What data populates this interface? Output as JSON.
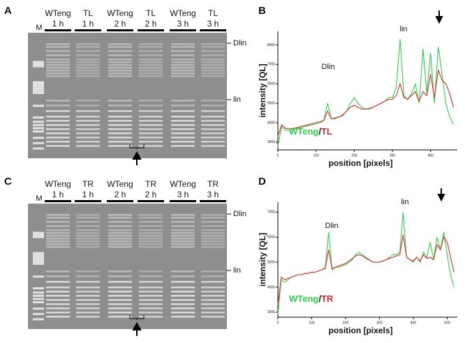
{
  "gels": [
    {
      "panel": "A",
      "marker": "M",
      "lanes": [
        {
          "name": "WTeng",
          "time": "1 h"
        },
        {
          "name": "TL",
          "time": "1 h"
        },
        {
          "name": "WTeng",
          "time": "2 h"
        },
        {
          "name": "TL",
          "time": "2 h"
        },
        {
          "name": "WTeng",
          "time": "3 h"
        },
        {
          "name": "TL",
          "time": "3 h"
        }
      ],
      "bands": [
        "Dlin",
        "lin"
      ]
    },
    {
      "panel": "C",
      "marker": "M",
      "lanes": [
        {
          "name": "WTeng",
          "time": "1 h"
        },
        {
          "name": "TR",
          "time": "1 h"
        },
        {
          "name": "WTeng",
          "time": "2 h"
        },
        {
          "name": "TR",
          "time": "2 h"
        },
        {
          "name": "WTeng",
          "time": "3 h"
        },
        {
          "name": "TR",
          "time": "3 h"
        }
      ],
      "bands": [
        "Dlin",
        "lin"
      ]
    }
  ],
  "chart_data": [
    {
      "type": "line",
      "panel": "B",
      "y_label": "intensity [QL]",
      "x_label": "position [pixels]",
      "legend_separator": "/",
      "annotations": [
        "Dlin",
        "lin"
      ],
      "x": [
        0,
        10,
        20,
        30,
        40,
        50,
        60,
        70,
        80,
        90,
        100,
        110,
        120,
        130,
        140,
        150,
        160,
        170,
        180,
        190,
        200,
        210,
        220,
        230,
        240,
        250,
        260,
        270,
        280,
        290,
        300,
        310,
        320,
        330,
        340,
        350,
        360,
        370,
        380,
        390,
        400,
        410,
        420,
        430,
        440,
        450,
        460
      ],
      "series": [
        {
          "name": "WTeng",
          "color": "#2fd04a",
          "values": [
            2800,
            3800,
            3600,
            3600,
            3650,
            3700,
            3750,
            3800,
            3850,
            3900,
            3950,
            4000,
            4100,
            5000,
            4200,
            4200,
            4300,
            4350,
            4600,
            5000,
            5300,
            5000,
            4800,
            4700,
            4700,
            4800,
            4900,
            5000,
            5100,
            5300,
            5300,
            5800,
            8300,
            5400,
            5200,
            5500,
            6000,
            5000,
            7800,
            5500,
            7600,
            5000,
            7900,
            6500,
            5000,
            4300,
            3900
          ]
        },
        {
          "name": "TL",
          "color": "#e8262b",
          "values": [
            3300,
            3900,
            3700,
            3700,
            3700,
            3750,
            3800,
            3850,
            3900,
            3950,
            4000,
            4050,
            4100,
            4600,
            4200,
            4250,
            4300,
            4400,
            4600,
            4800,
            4900,
            4800,
            4700,
            4700,
            4750,
            4800,
            4900,
            5000,
            5100,
            5200,
            5200,
            5400,
            6000,
            5300,
            5200,
            5400,
            5600,
            5100,
            5600,
            5400,
            6500,
            5300,
            6700,
            6200,
            6000,
            5500,
            4800
          ]
        }
      ],
      "xlim": [
        0,
        470
      ],
      "ylim": [
        2600,
        8700
      ],
      "xticks": [
        0,
        100,
        200,
        300,
        400
      ],
      "yticks": [
        3000,
        4000,
        5000,
        6000,
        7000,
        8000
      ]
    },
    {
      "type": "line",
      "panel": "D",
      "y_label": "intensity [QL]",
      "x_label": "position [pixels]",
      "legend_separator": "/",
      "annotations": [
        "Dlin",
        "lin"
      ],
      "x": [
        0,
        10,
        20,
        30,
        40,
        50,
        60,
        70,
        80,
        90,
        100,
        110,
        120,
        130,
        140,
        150,
        160,
        170,
        180,
        190,
        200,
        210,
        220,
        230,
        240,
        250,
        260,
        270,
        280,
        290,
        300,
        310,
        320,
        330,
        340,
        350,
        360,
        370,
        380,
        390,
        400,
        410,
        420,
        430,
        440,
        450,
        460,
        470,
        480,
        490,
        500,
        510,
        520
      ],
      "series": [
        {
          "name": "WTeng",
          "color": "#2fd04a",
          "values": [
            2900,
            4300,
            4200,
            4300,
            4400,
            4450,
            4500,
            4500,
            4550,
            4550,
            4600,
            4600,
            4650,
            4700,
            4800,
            6200,
            4700,
            4800,
            4800,
            4850,
            4900,
            5000,
            5100,
            5300,
            5400,
            5300,
            5200,
            5100,
            5000,
            5000,
            5000,
            5050,
            5100,
            5200,
            5300,
            5300,
            5400,
            7000,
            5200,
            5100,
            5000,
            5200,
            5000,
            5400,
            5200,
            5800,
            5100,
            6000,
            5500,
            6200,
            5300,
            4500,
            4000
          ]
        },
        {
          "name": "TR",
          "color": "#e8262b",
          "values": [
            3300,
            4400,
            4300,
            4350,
            4400,
            4450,
            4500,
            4500,
            4550,
            4550,
            4600,
            4600,
            4650,
            4700,
            4750,
            5500,
            4750,
            4800,
            4850,
            4900,
            4950,
            5050,
            5150,
            5250,
            5300,
            5250,
            5150,
            5100,
            5000,
            5000,
            5000,
            5050,
            5100,
            5150,
            5200,
            5250,
            5300,
            6100,
            5200,
            5100,
            5050,
            5200,
            5050,
            5300,
            5150,
            5200,
            5100,
            5700,
            5500,
            6000,
            5800,
            5200,
            4600
          ]
        }
      ],
      "xlim": [
        0,
        530
      ],
      "ylim": [
        2800,
        7400
      ],
      "xticks": [
        0,
        100,
        200,
        300,
        400,
        500
      ],
      "yticks": [
        3000,
        4000,
        5000,
        6000,
        7000
      ]
    }
  ]
}
